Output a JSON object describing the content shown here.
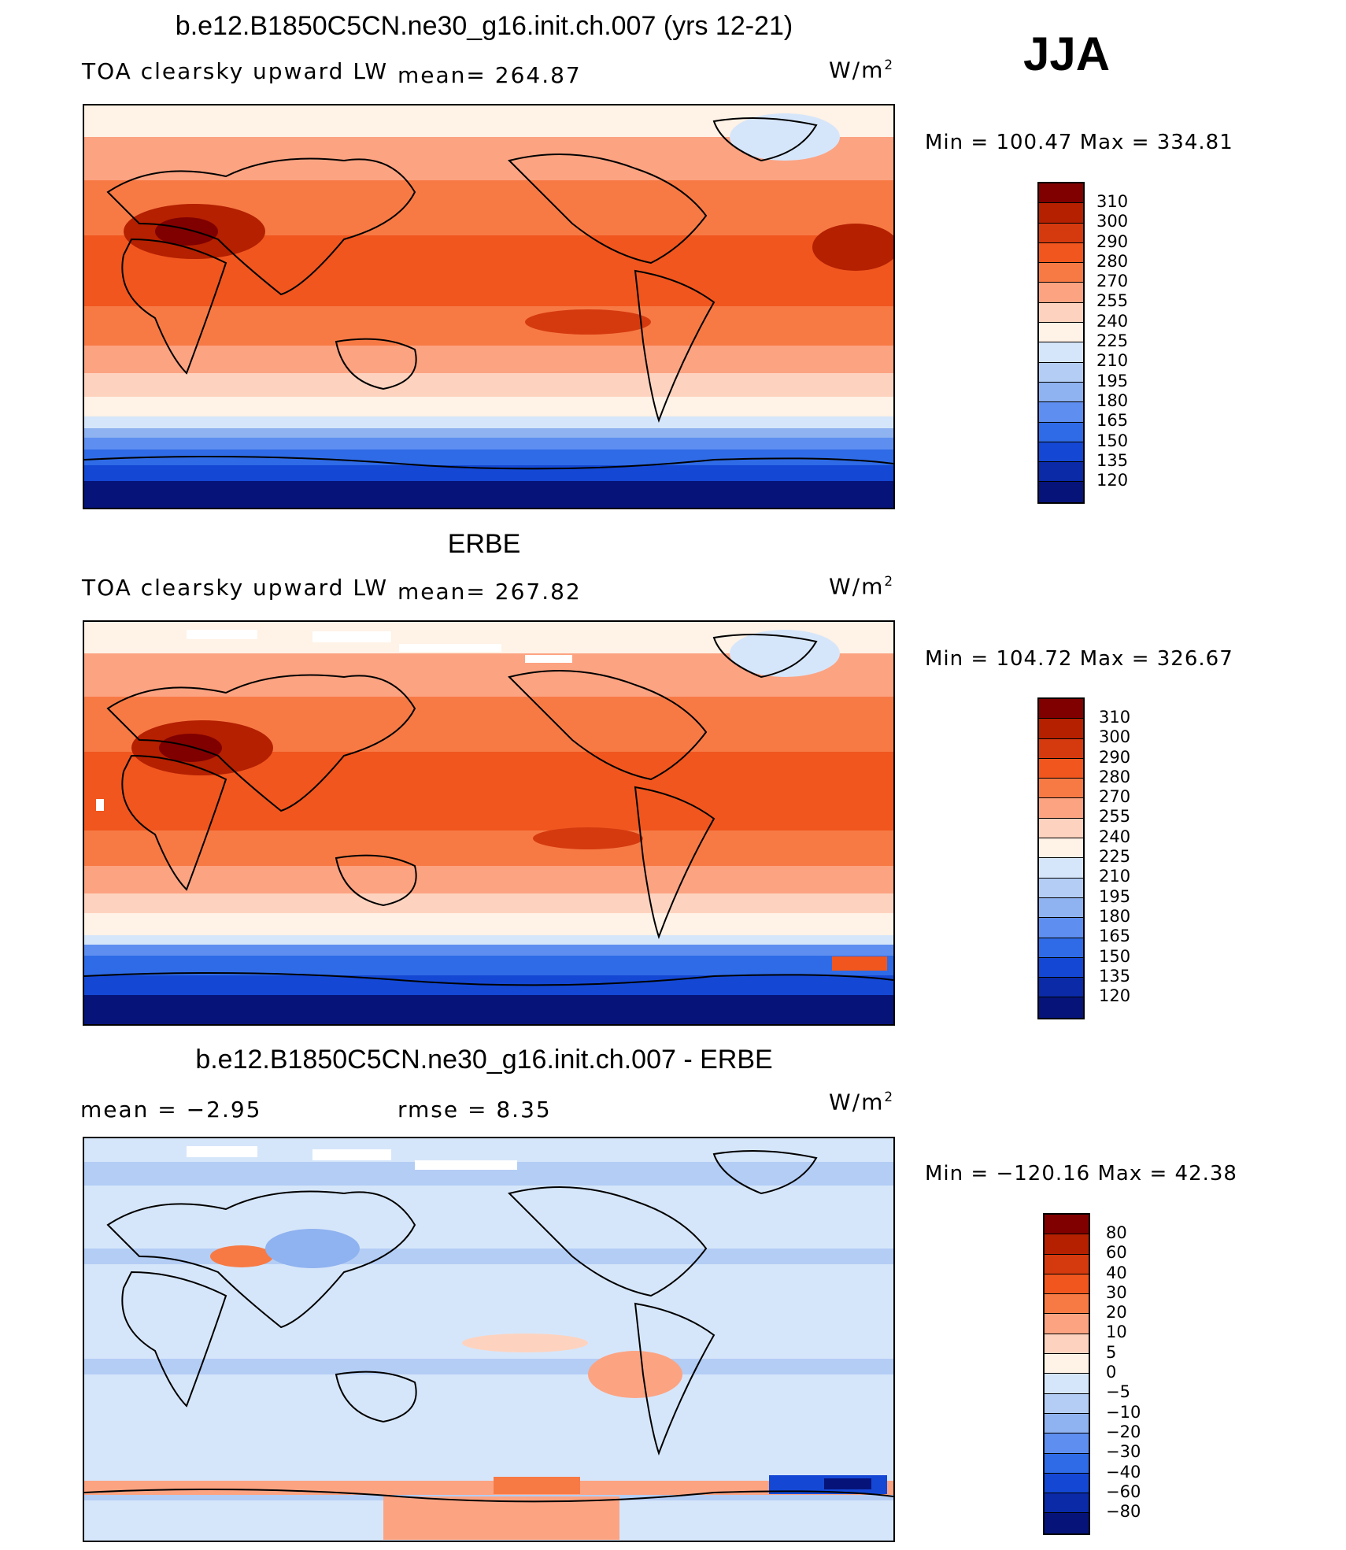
{
  "season": "JJA",
  "panels": [
    {
      "title": "b.e12.B1850C5CN.ne30_g16.init.ch.007 (yrs 12-21)",
      "left_label": "TOA clearsky upward LW",
      "center_label": "mean= 264.87",
      "units": "W/m",
      "units_sup": "2",
      "minmax": "Min  =  100.47  Max  =  334.81",
      "ticks": [
        "310",
        "300",
        "290",
        "280",
        "270",
        "255",
        "240",
        "225",
        "210",
        "195",
        "180",
        "165",
        "150",
        "135",
        "120"
      ]
    },
    {
      "title": "ERBE",
      "left_label": "TOA clearsky upward LW",
      "center_label": "mean= 267.82",
      "units": "W/m",
      "units_sup": "2",
      "minmax": "Min  =  104.72  Max  =  326.67",
      "ticks": [
        "310",
        "300",
        "290",
        "280",
        "270",
        "255",
        "240",
        "225",
        "210",
        "195",
        "180",
        "165",
        "150",
        "135",
        "120"
      ]
    },
    {
      "title": "b.e12.B1850C5CN.ne30_g16.init.ch.007 - ERBE",
      "left_label": "mean =    −2.95",
      "center_label": "rmse =    8.35",
      "units": "W/m",
      "units_sup": "2",
      "minmax": "Min  =  −120.16  Max  =    42.38",
      "ticks": [
        "80",
        "60",
        "40",
        "30",
        "20",
        "10",
        "5",
        "0",
        "−5",
        "−10",
        "−20",
        "−30",
        "−40",
        "−60",
        "−80"
      ]
    }
  ],
  "colors": {
    "abs_scale": [
      "#800000",
      "#b42000",
      "#d53a0f",
      "#f0561e",
      "#f77a45",
      "#fca382",
      "#fdd3bf",
      "#fff2e6",
      "#d6e6fa",
      "#b3cdf5",
      "#8fb2f0",
      "#5e8ef0",
      "#2f6be6",
      "#1448d4",
      "#0a2aa8",
      "#06147a"
    ],
    "diff_scale": [
      "#800000",
      "#b42000",
      "#d53a0f",
      "#f0561e",
      "#f77a45",
      "#fca382",
      "#fdd3bf",
      "#fff2e6",
      "#d6e6fa",
      "#b3cdf5",
      "#8fb2f0",
      "#5e8ef0",
      "#2f6be6",
      "#1448d4",
      "#0a2aa8",
      "#06147a"
    ]
  }
}
